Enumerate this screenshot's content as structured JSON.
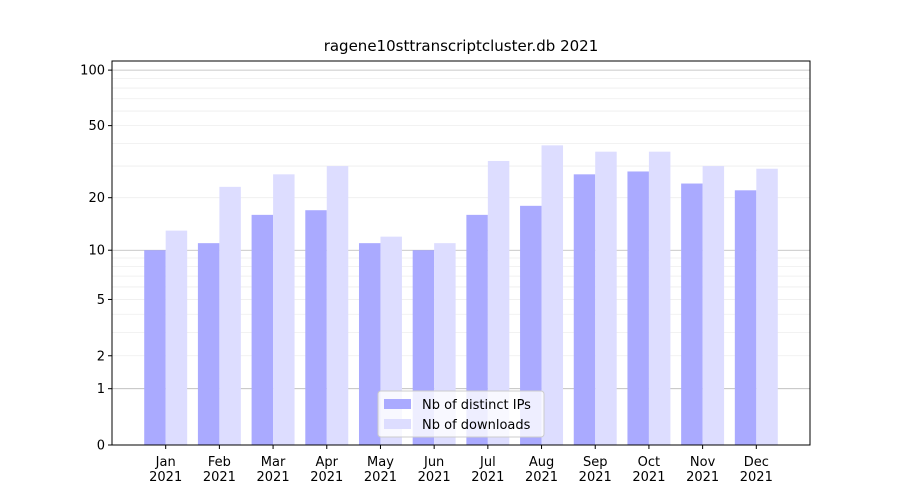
{
  "chart_data": {
    "type": "bar",
    "title": "ragene10sttranscriptcluster.db 2021",
    "categories": [
      "Jan\n2021",
      "Feb\n2021",
      "Mar\n2021",
      "Apr\n2021",
      "May\n2021",
      "Jun\n2021",
      "Jul\n2021",
      "Aug\n2021",
      "Sep\n2021",
      "Oct\n2021",
      "Nov\n2021",
      "Dec\n2021"
    ],
    "series": [
      {
        "name": "Nb of distinct IPs",
        "color": "#aaaaff",
        "values": [
          10,
          11,
          16,
          17,
          11,
          10,
          16,
          18,
          27,
          28,
          24,
          22
        ]
      },
      {
        "name": "Nb of downloads",
        "color": "#ddddff",
        "values": [
          13,
          23,
          27,
          30,
          12,
          11,
          32,
          39,
          36,
          36,
          30,
          29
        ]
      }
    ],
    "yscale": "symlog",
    "ylim": [
      0,
      112
    ],
    "yticks": [
      0,
      1,
      2,
      5,
      10,
      20,
      50,
      100
    ],
    "ymajorgrid": [
      1,
      10,
      100
    ],
    "yminorgrid": [
      2,
      3,
      4,
      5,
      6,
      7,
      8,
      9,
      20,
      30,
      40,
      50,
      60,
      70,
      80,
      90
    ],
    "legend": "lower center"
  }
}
